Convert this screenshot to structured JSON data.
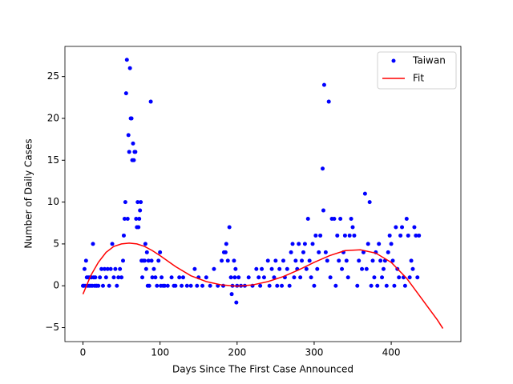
{
  "chart_data": {
    "type": "scatter",
    "xlabel": "Days Since The First Case Announced",
    "ylabel": "Number of Daily Cases",
    "xlim": [
      -23.4,
      490.4
    ],
    "ylim": [
      -6.67,
      28.6
    ],
    "xticks": [
      0,
      100,
      200,
      300,
      400
    ],
    "yticks": [
      {
        "value": -5,
        "label": "−5"
      },
      0,
      5,
      10,
      15,
      20,
      25
    ],
    "legend": "upper right",
    "series": [
      {
        "name": "Taiwan",
        "type": "scatter",
        "color": "#0000ff",
        "x": [
          0,
          1,
          2,
          3,
          4,
          5,
          6,
          7,
          8,
          9,
          10,
          11,
          12,
          13,
          14,
          15,
          16,
          17,
          18,
          20,
          22,
          24,
          26,
          28,
          30,
          32,
          34,
          36,
          38,
          40,
          42,
          44,
          46,
          48,
          50,
          52,
          53,
          54,
          55,
          56,
          57,
          58,
          59,
          60,
          61,
          62,
          63,
          64,
          65,
          66,
          67,
          68,
          69,
          70,
          71,
          72,
          73,
          74,
          75,
          76,
          77,
          78,
          80,
          81,
          82,
          83,
          84,
          85,
          86,
          88,
          89,
          90,
          92,
          94,
          96,
          98,
          100,
          101,
          102,
          104,
          106,
          110,
          115,
          118,
          120,
          125,
          128,
          130,
          135,
          140,
          145,
          148,
          150,
          155,
          160,
          165,
          170,
          175,
          180,
          182,
          183,
          185,
          186,
          188,
          190,
          192,
          193,
          194,
          196,
          197,
          198,
          199,
          200,
          202,
          205,
          210,
          215,
          220,
          225,
          228,
          230,
          232,
          235,
          240,
          242,
          245,
          248,
          250,
          252,
          255,
          258,
          260,
          262,
          265,
          268,
          270,
          272,
          274,
          276,
          278,
          280,
          282,
          284,
          286,
          288,
          290,
          292,
          294,
          296,
          298,
          300,
          302,
          304,
          306,
          308,
          311,
          312,
          313,
          315,
          317,
          319,
          321,
          323,
          326,
          328,
          330,
          332,
          334,
          336,
          338,
          340,
          342,
          344,
          346,
          348,
          350,
          352,
          356,
          358,
          362,
          364,
          366,
          368,
          370,
          372,
          374,
          376,
          378,
          380,
          382,
          384,
          386,
          388,
          390,
          392,
          394,
          396,
          398,
          400,
          402,
          404,
          406,
          408,
          410,
          412,
          414,
          416,
          418,
          420,
          422,
          424,
          426,
          428,
          430,
          432,
          434,
          436
        ],
        "values": [
          0,
          0,
          2,
          0,
          3,
          1,
          0,
          1,
          0,
          1,
          0,
          1,
          0,
          5,
          1,
          0,
          1,
          0,
          0,
          0,
          1,
          2,
          0,
          2,
          1,
          2,
          0,
          2,
          5,
          1,
          2,
          0,
          1,
          2,
          1,
          3,
          6,
          8,
          10,
          23,
          27,
          8,
          18,
          16,
          26,
          20,
          20,
          15,
          17,
          15,
          16,
          16,
          8,
          7,
          10,
          7,
          8,
          9,
          10,
          3,
          1,
          3,
          3,
          5,
          2,
          4,
          0,
          3,
          0,
          22,
          3,
          1,
          2,
          1,
          0,
          3,
          4,
          0,
          1,
          0,
          0,
          0,
          1,
          0,
          0,
          1,
          0,
          1,
          0,
          0,
          2,
          0,
          1,
          0,
          1,
          0,
          2,
          0,
          3,
          0,
          4,
          4,
          5,
          3,
          7,
          1,
          -1,
          0,
          3,
          1,
          2,
          -2,
          0,
          1,
          0,
          0,
          1,
          0,
          2,
          1,
          0,
          2,
          1,
          3,
          0,
          2,
          1,
          3,
          0,
          2,
          0,
          3,
          1,
          2,
          0,
          4,
          5,
          1,
          3,
          2,
          5,
          1,
          3,
          4,
          5,
          2,
          8,
          3,
          1,
          5,
          0,
          6,
          2,
          4,
          6,
          14,
          9,
          24,
          4,
          3,
          22,
          1,
          8,
          8,
          0,
          6,
          3,
          8,
          2,
          4,
          6,
          3,
          1,
          6,
          8,
          7,
          6,
          0,
          3,
          2,
          4,
          11,
          2,
          5,
          10,
          0,
          3,
          1,
          4,
          0,
          5,
          3,
          1,
          2,
          3,
          0,
          4,
          6,
          5,
          3,
          0,
          7,
          2,
          1,
          6,
          7,
          1,
          0,
          8,
          6,
          1,
          3,
          2,
          7,
          6,
          1,
          6
        ]
      },
      {
        "name": "Fit",
        "type": "line",
        "color": "#ff0000",
        "x": [
          0,
          10,
          20,
          30,
          40,
          50,
          60,
          70,
          80,
          90,
          100,
          120,
          140,
          160,
          180,
          200,
          220,
          240,
          260,
          280,
          300,
          320,
          340,
          360,
          380,
          400,
          420,
          440,
          460,
          467
        ],
        "values": [
          -1,
          1.2,
          2.8,
          4,
          4.7,
          5,
          5.1,
          5,
          4.7,
          4.2,
          3.6,
          2.3,
          1.2,
          0.5,
          0.1,
          -0.05,
          0.1,
          0.5,
          1.1,
          1.9,
          2.8,
          3.6,
          4.2,
          4.3,
          3.9,
          2.8,
          0.9,
          -1.6,
          -4.1,
          -5.1
        ]
      }
    ]
  }
}
